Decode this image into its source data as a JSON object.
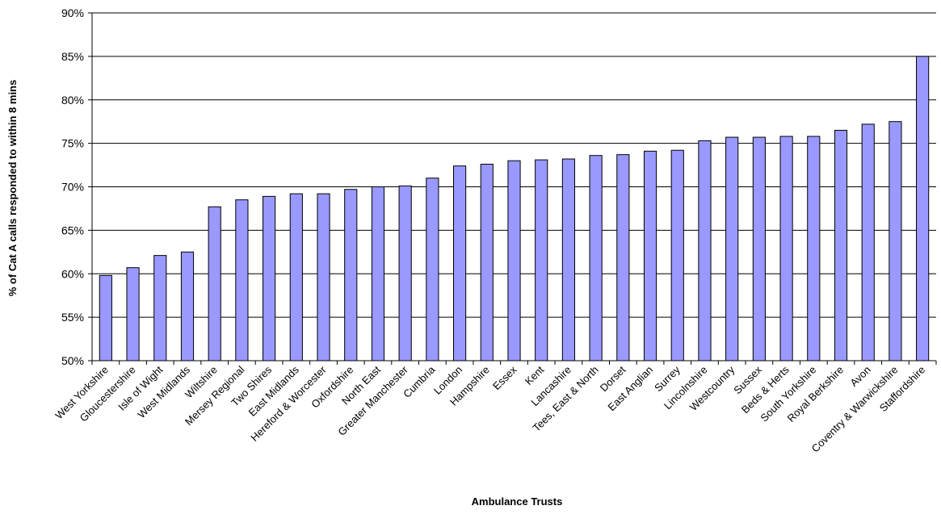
{
  "chart_data": {
    "type": "bar",
    "title": "",
    "xlabel": "Ambulance Trusts",
    "ylabel": "% of Cat A calls responded to within 8 mins",
    "ylim": [
      50,
      90
    ],
    "yticks": [
      50,
      55,
      60,
      65,
      70,
      75,
      80,
      85,
      90
    ],
    "ytick_suffix": "%",
    "grid": true,
    "legend": "none",
    "bar_color": "#9999ff",
    "bar_edge_color": "#000000",
    "categories": [
      "West Yorkshire",
      "Gloucestershire",
      "Isle of Wight",
      "West Midlands",
      "Wiltshire",
      "Mersey Regional",
      "Two Shires",
      "East Midlands",
      "Hereford & Worcester",
      "Oxfordshire",
      "North East",
      "Greater Manchester",
      "Cumbria",
      "London",
      "Hampshire",
      "Essex",
      "Kent",
      "Lancashire",
      "Tees, East & North",
      "Dorset",
      "East Anglian",
      "Surrey",
      "Lincolnshire",
      "Westcountry",
      "Sussex",
      "Beds & Herts",
      "South Yorkshire",
      "Royal Berkshire",
      "Avon",
      "Coventry & Warwickshire",
      "Staffordshire"
    ],
    "values": [
      59.8,
      60.7,
      62.1,
      62.5,
      67.7,
      68.5,
      68.9,
      69.2,
      69.2,
      69.7,
      70.0,
      70.1,
      71.0,
      72.4,
      72.6,
      73.0,
      73.1,
      73.2,
      73.6,
      73.7,
      74.1,
      74.2,
      75.3,
      75.7,
      75.7,
      75.8,
      75.8,
      76.5,
      77.2,
      77.5,
      85.0
    ]
  }
}
